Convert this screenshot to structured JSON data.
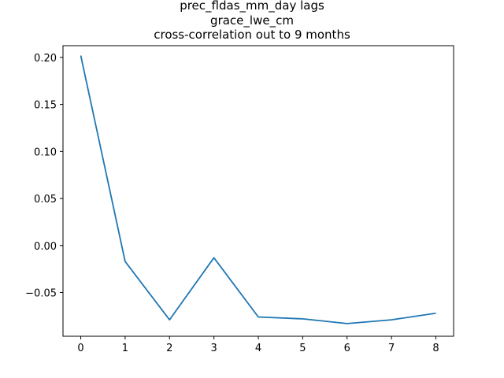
{
  "chart_data": {
    "type": "line",
    "title_lines": [
      "prec_fldas_mm_day lags",
      "grace_lwe_cm",
      "cross-correlation out to 9 months"
    ],
    "xlabel": "",
    "ylabel": "",
    "x": [
      0,
      1,
      2,
      3,
      4,
      5,
      6,
      7,
      8
    ],
    "series": [
      {
        "values": [
          0.202,
          -0.017,
          -0.079,
          -0.013,
          -0.076,
          -0.078,
          -0.083,
          -0.079,
          -0.072
        ],
        "color": "#1f77b4"
      }
    ],
    "xlim": [
      -0.4,
      8.4
    ],
    "ylim": [
      -0.0965,
      0.2125
    ],
    "xticks": [
      0,
      1,
      2,
      3,
      4,
      5,
      6,
      7,
      8
    ],
    "yticks": [
      0.2,
      0.15,
      0.1,
      0.05,
      0.0,
      -0.05
    ],
    "ytick_labels": [
      "0.20",
      "0.15",
      "0.10",
      "0.05",
      "0.00",
      "−0.05"
    ],
    "grid": false,
    "legend": "none"
  }
}
